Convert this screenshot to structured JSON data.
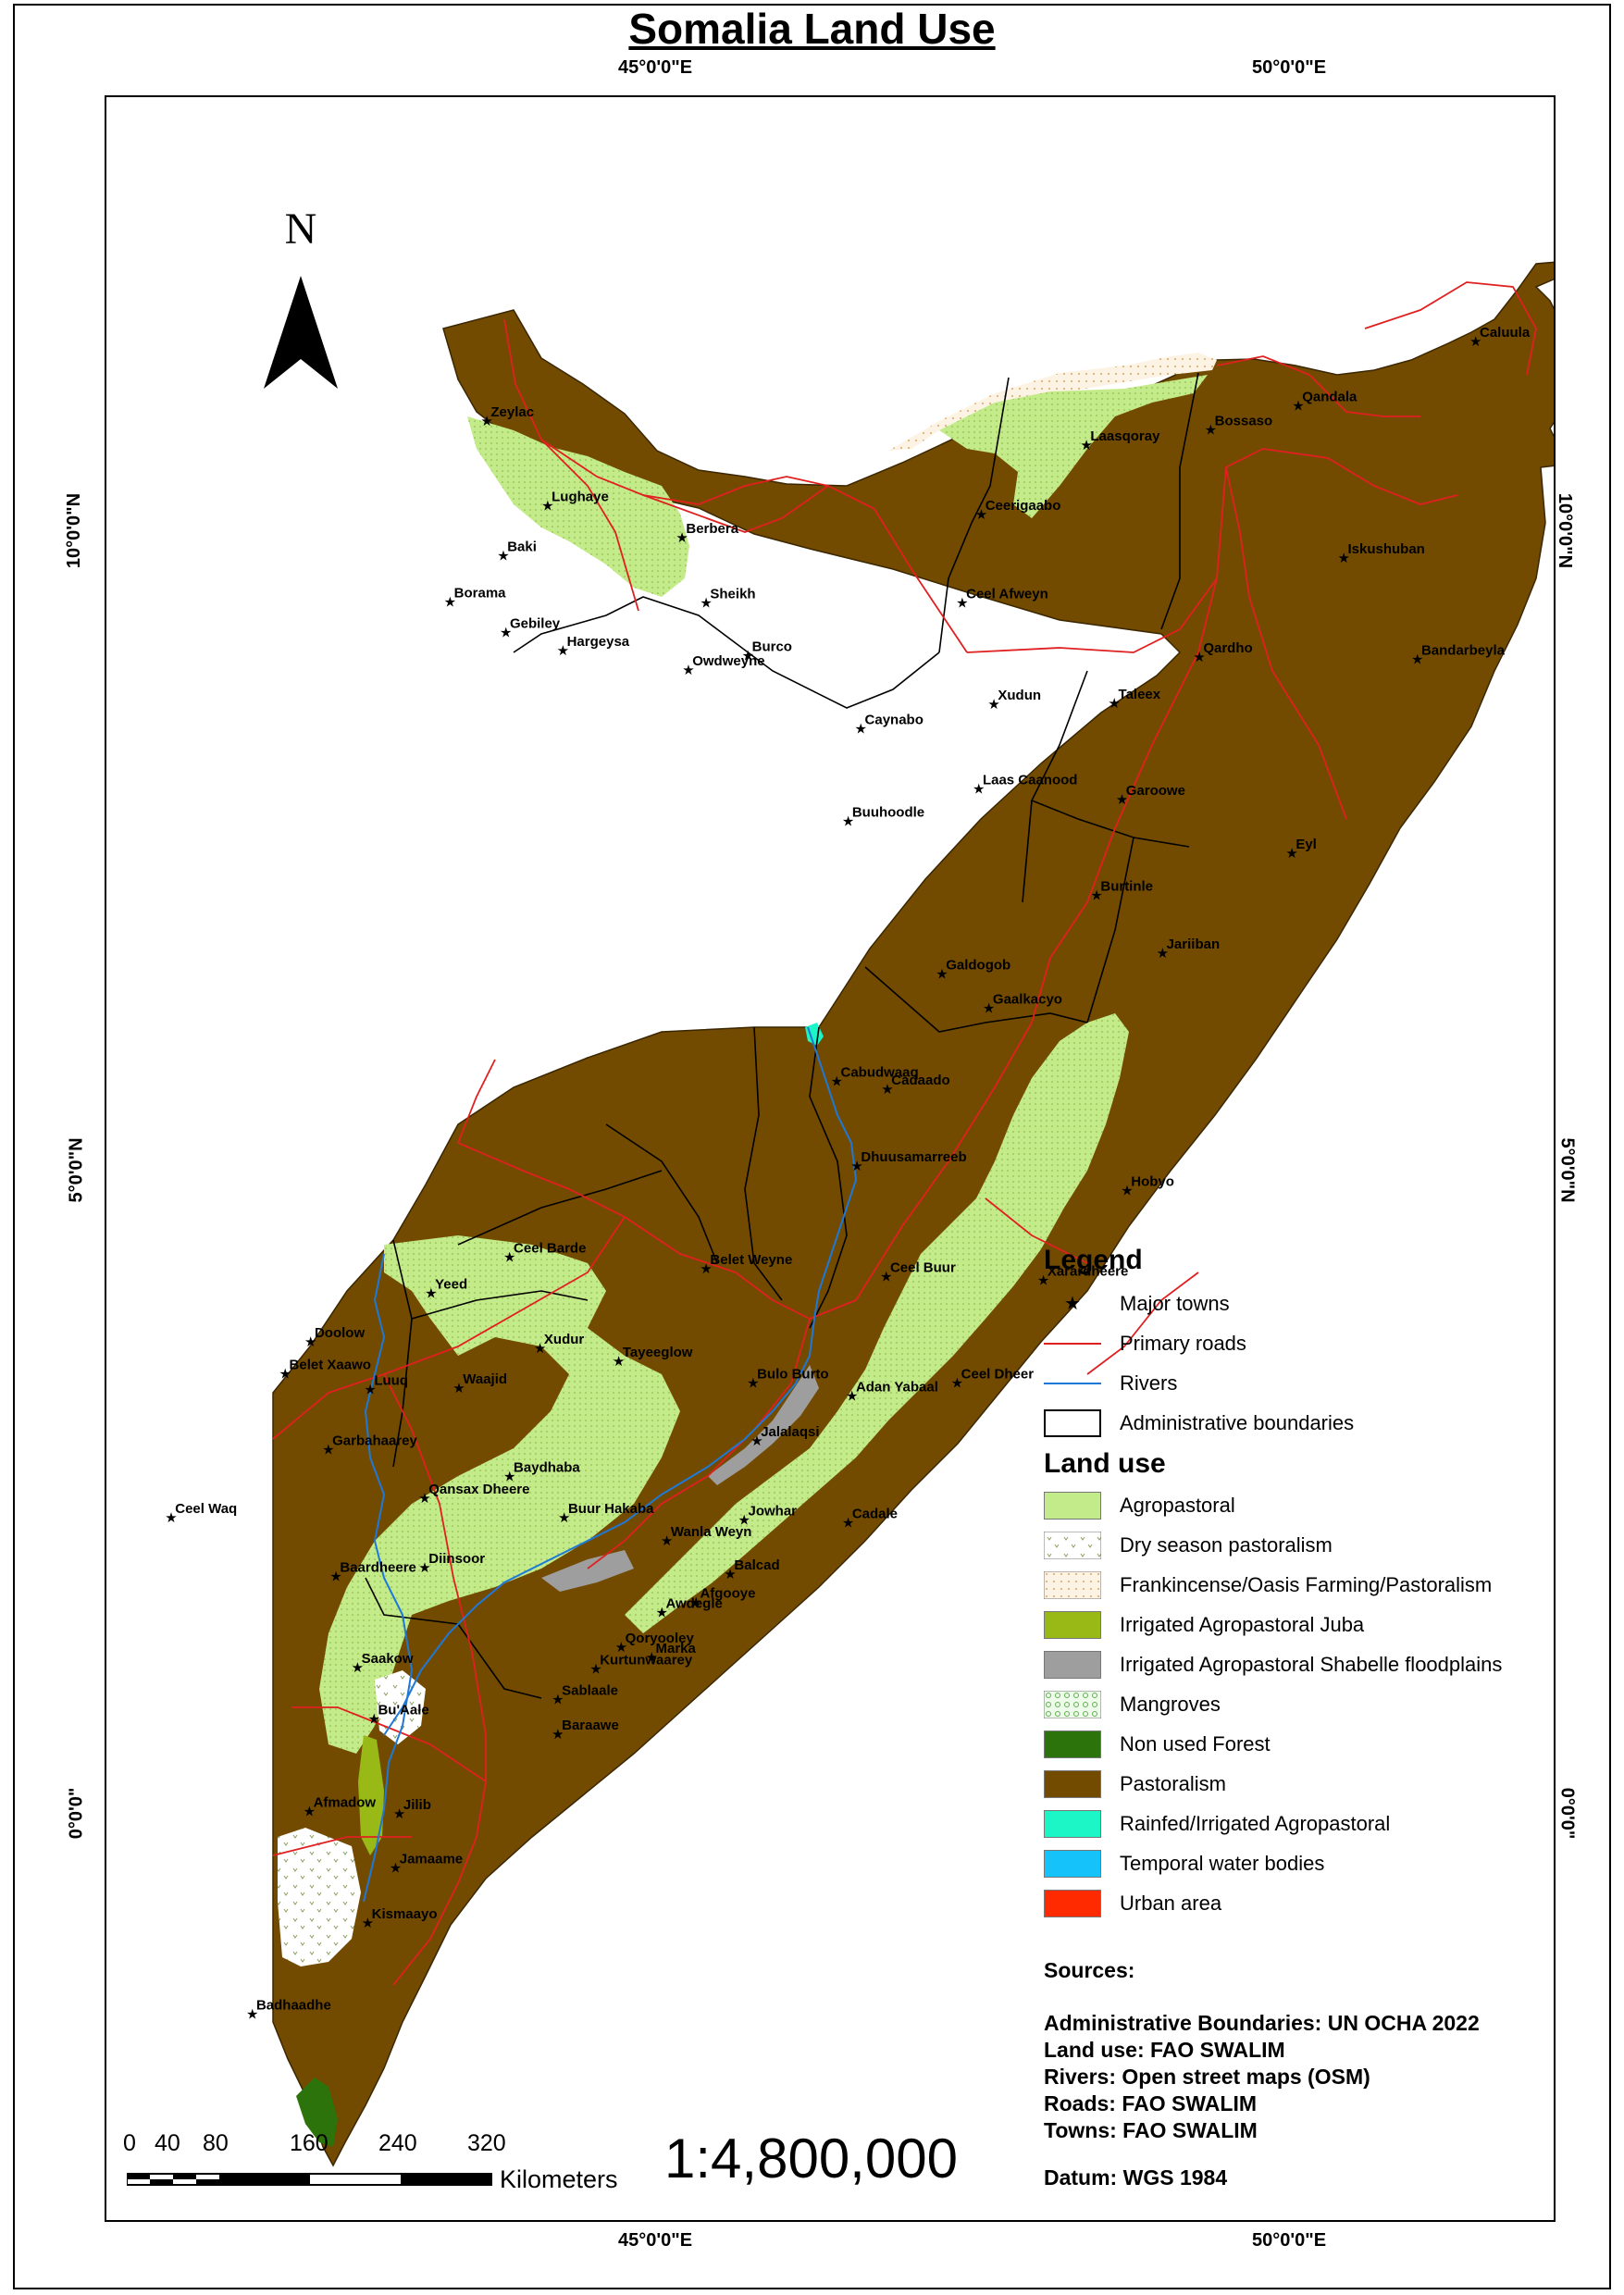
{
  "title": "Somalia Land Use",
  "graticule": {
    "top": [
      "45°0'0\"E",
      "50°0'0\"E"
    ],
    "bottom": [
      "45°0'0\"E",
      "50°0'0\"E"
    ],
    "left": [
      "10°0'0\"N",
      "5°0'0\"N",
      "0°0'0\""
    ],
    "right": [
      "10°0'0\"N",
      "5°0'0\"N",
      "0°0'0\""
    ]
  },
  "north_arrow": {
    "letter": "N"
  },
  "towns": [
    {
      "name": "Caluula",
      "lon": 51.27,
      "lat": 11.97
    },
    {
      "name": "Qandala",
      "lon": 49.87,
      "lat": 11.47
    },
    {
      "name": "Bossaso",
      "lon": 49.18,
      "lat": 11.28
    },
    {
      "name": "Laasqoray",
      "lon": 48.2,
      "lat": 11.16
    },
    {
      "name": "Zeylac",
      "lon": 43.47,
      "lat": 11.35
    },
    {
      "name": "Lughaye",
      "lon": 43.95,
      "lat": 10.69
    },
    {
      "name": "Berbera",
      "lon": 45.01,
      "lat": 10.44
    },
    {
      "name": "Ceerigaabo",
      "lon": 47.37,
      "lat": 10.62
    },
    {
      "name": "Baki",
      "lon": 43.6,
      "lat": 10.3
    },
    {
      "name": "Iskushuban",
      "lon": 50.23,
      "lat": 10.28
    },
    {
      "name": "Borama",
      "lon": 43.18,
      "lat": 9.94
    },
    {
      "name": "Sheikh",
      "lon": 45.2,
      "lat": 9.93
    },
    {
      "name": "Ceel Afweyn",
      "lon": 47.22,
      "lat": 9.93
    },
    {
      "name": "Gebiley",
      "lon": 43.62,
      "lat": 9.7
    },
    {
      "name": "Hargeysa",
      "lon": 44.07,
      "lat": 9.56
    },
    {
      "name": "Burco",
      "lon": 45.53,
      "lat": 9.52
    },
    {
      "name": "Owdweyne",
      "lon": 45.06,
      "lat": 9.41
    },
    {
      "name": "Qardho",
      "lon": 49.09,
      "lat": 9.51
    },
    {
      "name": "Bandarbeyla",
      "lon": 50.81,
      "lat": 9.49
    },
    {
      "name": "Xudun",
      "lon": 47.47,
      "lat": 9.14
    },
    {
      "name": "Taleex",
      "lon": 48.42,
      "lat": 9.15
    },
    {
      "name": "Caynabo",
      "lon": 46.42,
      "lat": 8.95
    },
    {
      "name": "Laas Caanood",
      "lon": 47.35,
      "lat": 8.48
    },
    {
      "name": "Garoowe",
      "lon": 48.48,
      "lat": 8.4
    },
    {
      "name": "Buuhoodle",
      "lon": 46.32,
      "lat": 8.23
    },
    {
      "name": "Eyl",
      "lon": 49.82,
      "lat": 7.98
    },
    {
      "name": "Burtinle",
      "lon": 48.28,
      "lat": 7.65
    },
    {
      "name": "Jariiban",
      "lon": 48.8,
      "lat": 7.2
    },
    {
      "name": "Galdogob",
      "lon": 47.06,
      "lat": 7.04
    },
    {
      "name": "Gaalkacyo",
      "lon": 47.43,
      "lat": 6.77
    },
    {
      "name": "Cabudwaaq",
      "lon": 46.23,
      "lat": 6.2
    },
    {
      "name": "Cadaado",
      "lon": 46.63,
      "lat": 6.14
    },
    {
      "name": "Dhuusamarreeb",
      "lon": 46.39,
      "lat": 5.54
    },
    {
      "name": "Hobyo",
      "lon": 48.52,
      "lat": 5.35
    },
    {
      "name": "Belet Weyne",
      "lon": 45.2,
      "lat": 4.74
    },
    {
      "name": "Ceel Barde",
      "lon": 43.65,
      "lat": 4.83
    },
    {
      "name": "Ceel Buur",
      "lon": 46.62,
      "lat": 4.68
    },
    {
      "name": "Xarardheere",
      "lon": 47.86,
      "lat": 4.65
    },
    {
      "name": "Yeed",
      "lon": 43.03,
      "lat": 4.55
    },
    {
      "name": "Doolow",
      "lon": 42.08,
      "lat": 4.17
    },
    {
      "name": "Xudur",
      "lon": 43.89,
      "lat": 4.12
    },
    {
      "name": "Tayeeglow",
      "lon": 44.51,
      "lat": 4.02
    },
    {
      "name": "Bulo Burto",
      "lon": 45.57,
      "lat": 3.85
    },
    {
      "name": "Ceel Dheer",
      "lon": 47.18,
      "lat": 3.85
    },
    {
      "name": "Belet Xaawo",
      "lon": 41.88,
      "lat": 3.92
    },
    {
      "name": "Luuq",
      "lon": 42.55,
      "lat": 3.8
    },
    {
      "name": "Waajid",
      "lon": 43.25,
      "lat": 3.81
    },
    {
      "name": "Adan Yabaal",
      "lon": 46.35,
      "lat": 3.75
    },
    {
      "name": "Garbahaarey",
      "lon": 42.22,
      "lat": 3.33
    },
    {
      "name": "Jalalaqsi",
      "lon": 45.6,
      "lat": 3.4
    },
    {
      "name": "Baydhaba",
      "lon": 43.65,
      "lat": 3.12
    },
    {
      "name": "Qansax Dheere",
      "lon": 42.98,
      "lat": 2.95
    },
    {
      "name": "Ceel Waq",
      "lon": 40.98,
      "lat": 2.8
    },
    {
      "name": "Buur Hakaba",
      "lon": 44.08,
      "lat": 2.8
    },
    {
      "name": "Jowhar",
      "lon": 45.5,
      "lat": 2.78
    },
    {
      "name": "Cadale",
      "lon": 46.32,
      "lat": 2.76
    },
    {
      "name": "Wanla Weyn",
      "lon": 44.89,
      "lat": 2.62
    },
    {
      "name": "Diinsoor",
      "lon": 42.98,
      "lat": 2.41
    },
    {
      "name": "Baardheere",
      "lon": 42.28,
      "lat": 2.34
    },
    {
      "name": "Balcad",
      "lon": 45.39,
      "lat": 2.36
    },
    {
      "name": "Awdegle",
      "lon": 44.85,
      "lat": 2.06
    },
    {
      "name": "Afgooye",
      "lon": 45.12,
      "lat": 2.14
    },
    {
      "name": "Qoryooley",
      "lon": 44.53,
      "lat": 1.79
    },
    {
      "name": "Marka",
      "lon": 44.77,
      "lat": 1.71
    },
    {
      "name": "Kurtunwaarey",
      "lon": 44.33,
      "lat": 1.62
    },
    {
      "name": "Saakow",
      "lon": 42.45,
      "lat": 1.63
    },
    {
      "name": "Sablaale",
      "lon": 44.03,
      "lat": 1.38
    },
    {
      "name": "Bu'Aale",
      "lon": 42.58,
      "lat": 1.23
    },
    {
      "name": "Baraawe",
      "lon": 44.03,
      "lat": 1.11
    },
    {
      "name": "Jilib",
      "lon": 42.78,
      "lat": 0.49
    },
    {
      "name": "Afmadow",
      "lon": 42.07,
      "lat": 0.51
    },
    {
      "name": "Jamaame",
      "lon": 42.75,
      "lat": 0.07
    },
    {
      "name": "Kismaayo",
      "lon": 42.53,
      "lat": -0.36
    },
    {
      "name": "Badhaadhe",
      "lon": 41.62,
      "lat": -1.07
    }
  ],
  "legend": {
    "title": "Legend",
    "symbols": [
      {
        "label": "Major towns",
        "icon": "star-icon"
      },
      {
        "label": "Primary roads",
        "color": "#e02020"
      },
      {
        "label": "Rivers",
        "color": "#1e78d8"
      },
      {
        "label": "Administrative boundaries",
        "color": "#000000"
      }
    ],
    "landuse_title": "Land use",
    "landuse": [
      {
        "label": "Agropastoral",
        "color": "#c4eb8a"
      },
      {
        "label": "Dry season pastoralism",
        "color": "#ffffff"
      },
      {
        "label": "Frankincense/Oasis Farming/Pastoralism",
        "color": "#fdf3e4"
      },
      {
        "label": "Irrigated Agropastoral Juba",
        "color": "#99b917"
      },
      {
        "label": "Irrigated Agropastoral Shabelle floodplains",
        "color": "#9e9e9e"
      },
      {
        "label": "Mangroves",
        "color": "#e6f7e0"
      },
      {
        "label": "Non used Forest",
        "color": "#2d730c"
      },
      {
        "label": "Pastoralism",
        "color": "#734b00"
      },
      {
        "label": "Rainfed/Irrigated Agropastoral",
        "color": "#1cf5c6"
      },
      {
        "label": "Temporal water bodies",
        "color": "#15c2fa"
      },
      {
        "label": "Urban area",
        "color": "#ff2a00"
      }
    ]
  },
  "sources": {
    "heading": "Sources:",
    "lines": [
      "Administrative Boundaries: UN OCHA 2022",
      "Land use: FAO SWALIM",
      "Rivers: Open street maps (OSM)",
      "Roads: FAO SWALIM",
      "Towns: FAO SWALIM"
    ]
  },
  "datum": "Datum: WGS 1984",
  "scale_bar": {
    "ticks": [
      "0",
      "40",
      "80",
      "160",
      "240",
      "320"
    ],
    "unit": "Kilometers"
  },
  "scale_ratio": "1:4,800,000"
}
